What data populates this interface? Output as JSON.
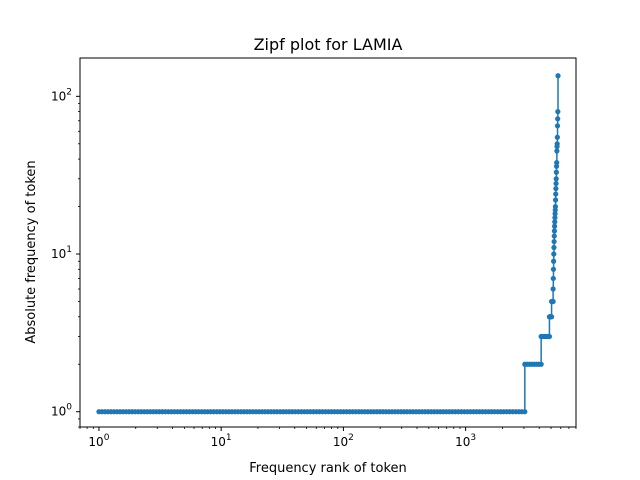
{
  "chart_data": {
    "type": "line",
    "title": "Zipf plot for LAMIA",
    "xlabel": "Frequency rank of token",
    "ylabel": "Absolute frequency of token",
    "xscale": "log",
    "yscale": "log",
    "xlim": [
      0.7,
      8000
    ],
    "ylim": [
      0.8,
      175
    ],
    "grid": false,
    "legend": "none",
    "series_color": "#1f77b4",
    "marker": "circle",
    "x_ticks": [
      {
        "base": "10",
        "exp": "0",
        "value": 1
      },
      {
        "base": "10",
        "exp": "1",
        "value": 10
      },
      {
        "base": "10",
        "exp": "2",
        "value": 100
      },
      {
        "base": "10",
        "exp": "3",
        "value": 1000
      }
    ],
    "y_ticks": [
      {
        "base": "10",
        "exp": "0",
        "value": 1
      },
      {
        "base": "10",
        "exp": "1",
        "value": 10
      },
      {
        "base": "10",
        "exp": "2",
        "value": 100
      }
    ],
    "segments": [
      {
        "value": 1,
        "from_rank": 1,
        "to_rank": 3050
      },
      {
        "value": 2,
        "from_rank": 3050,
        "to_rank": 4150
      },
      {
        "value": 3,
        "from_rank": 4150,
        "to_rank": 4850
      },
      {
        "value": 4,
        "from_rank": 4850,
        "to_rank": 5050
      },
      {
        "value": 5,
        "from_rank": 5050,
        "to_rank": 5200
      }
    ],
    "tail_values": [
      6,
      7,
      8,
      9,
      10,
      11,
      12,
      13,
      14,
      15,
      16,
      17,
      18,
      19,
      20,
      22,
      24,
      26,
      28,
      30,
      33,
      36,
      38,
      45,
      48,
      50,
      55,
      65,
      72,
      80,
      135
    ],
    "tail_rank_range": [
      5200,
      5700
    ]
  }
}
